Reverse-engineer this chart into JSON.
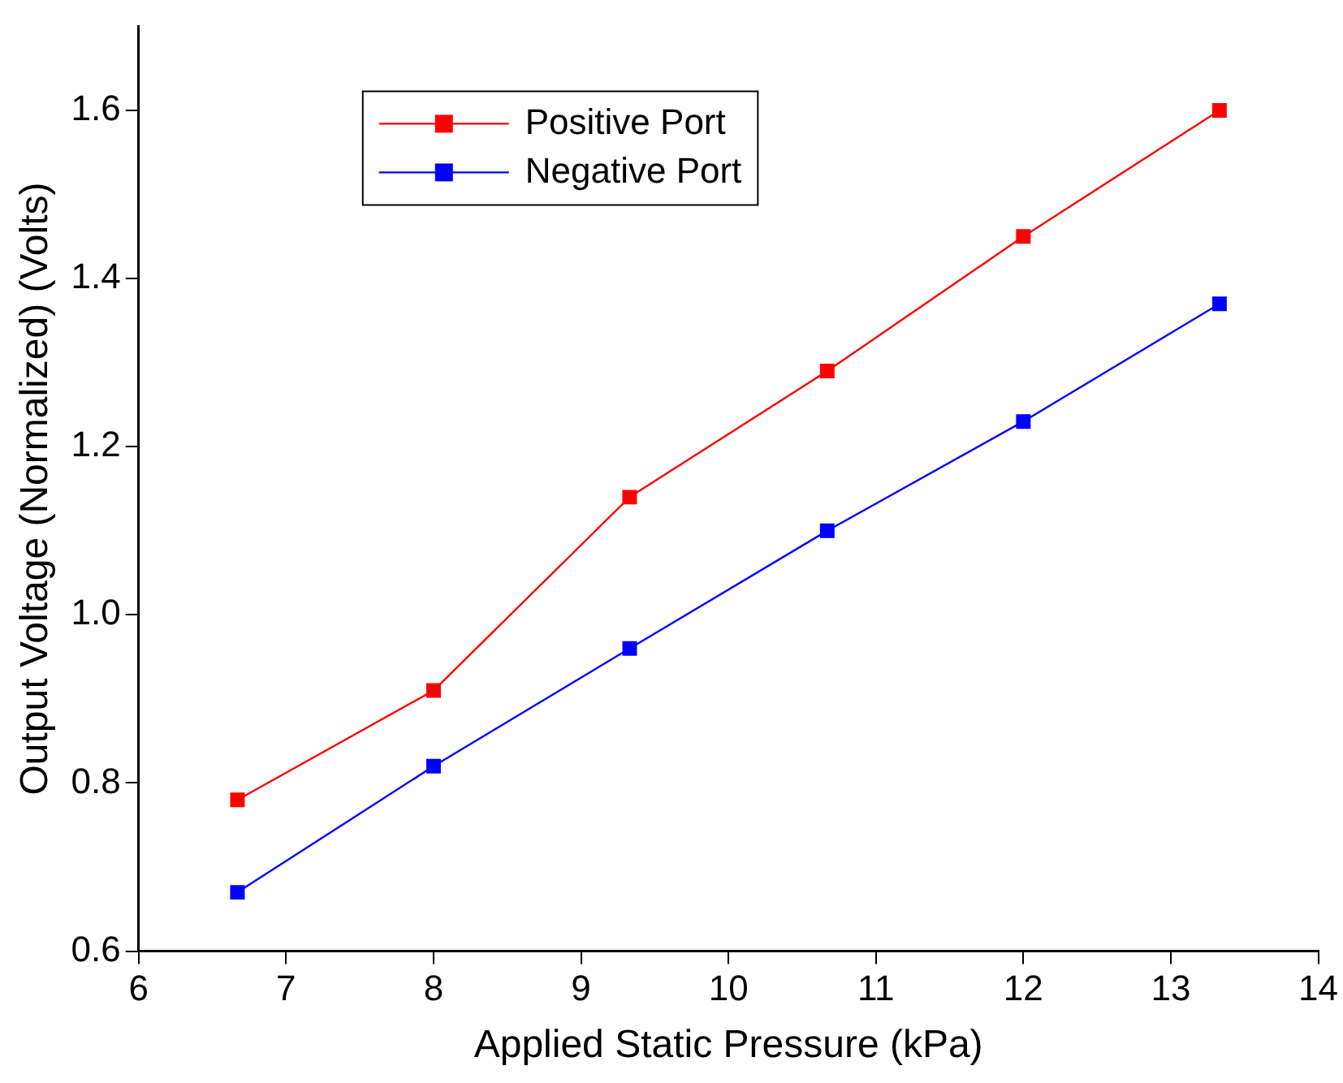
{
  "chart_data": {
    "type": "line",
    "xlabel": "Applied Static Pressure (kPa)",
    "ylabel": "Output Voltage (Normalized) (Volts)",
    "x": [
      6.67,
      8,
      9.33,
      10.67,
      12,
      13.33
    ],
    "series": [
      {
        "name": "Positive Port",
        "color": "#ff0000",
        "values": [
          0.78,
          0.91,
          1.14,
          1.29,
          1.45,
          1.6
        ]
      },
      {
        "name": "Negative Port",
        "color": "#0000ff",
        "values": [
          0.67,
          0.82,
          0.96,
          1.1,
          1.23,
          1.37
        ]
      }
    ],
    "xlim": [
      6,
      14
    ],
    "xticks": [
      6,
      7,
      8,
      9,
      10,
      11,
      12,
      13,
      14
    ],
    "ylim": [
      0.6,
      1.7
    ],
    "yticks": [
      0.6,
      0.8,
      {
        "value": 1,
        "label": "1.0"
      },
      1.2,
      1.4,
      1.6
    ],
    "grid": false,
    "legend": "top left",
    "marker": "square",
    "line_style": "solid"
  }
}
